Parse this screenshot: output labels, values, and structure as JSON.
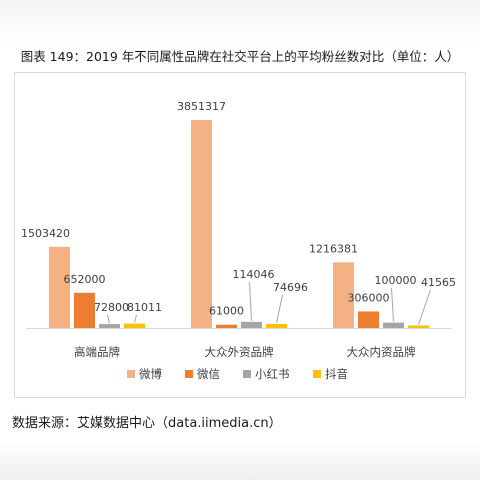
{
  "caption": "图表 149：2019 年不同属性品牌在社交平台上的平均粉丝数对比（单位：人）",
  "source": "数据来源：艾媒数据中心（data.iimedia.cn）",
  "chart_data": {
    "type": "bar",
    "categories": [
      "高端品牌",
      "大众外资品牌",
      "大众内资品牌"
    ],
    "series": [
      {
        "name": "微博",
        "color": "#F4B183",
        "values": [
          1503420,
          3851317,
          1216381
        ]
      },
      {
        "name": "微信",
        "color": "#ED7D31",
        "values": [
          652000,
          61000,
          306000
        ]
      },
      {
        "name": "小红书",
        "color": "#A5A5A5",
        "values": [
          72800,
          114046,
          100000
        ]
      },
      {
        "name": "抖音",
        "color": "#FFC000",
        "values": [
          81011,
          74696,
          41565
        ]
      }
    ],
    "data_labels": [
      [
        "1503420",
        "652000",
        "72800",
        "81011"
      ],
      [
        "3851317",
        "61000",
        "114046",
        "74696"
      ],
      [
        "1216381",
        "306000",
        "100000",
        "41565"
      ]
    ],
    "ylim": [
      0,
      4000000
    ],
    "grid": false,
    "legend_position": "bottom",
    "leader_line_color": "#A6A6A6"
  }
}
